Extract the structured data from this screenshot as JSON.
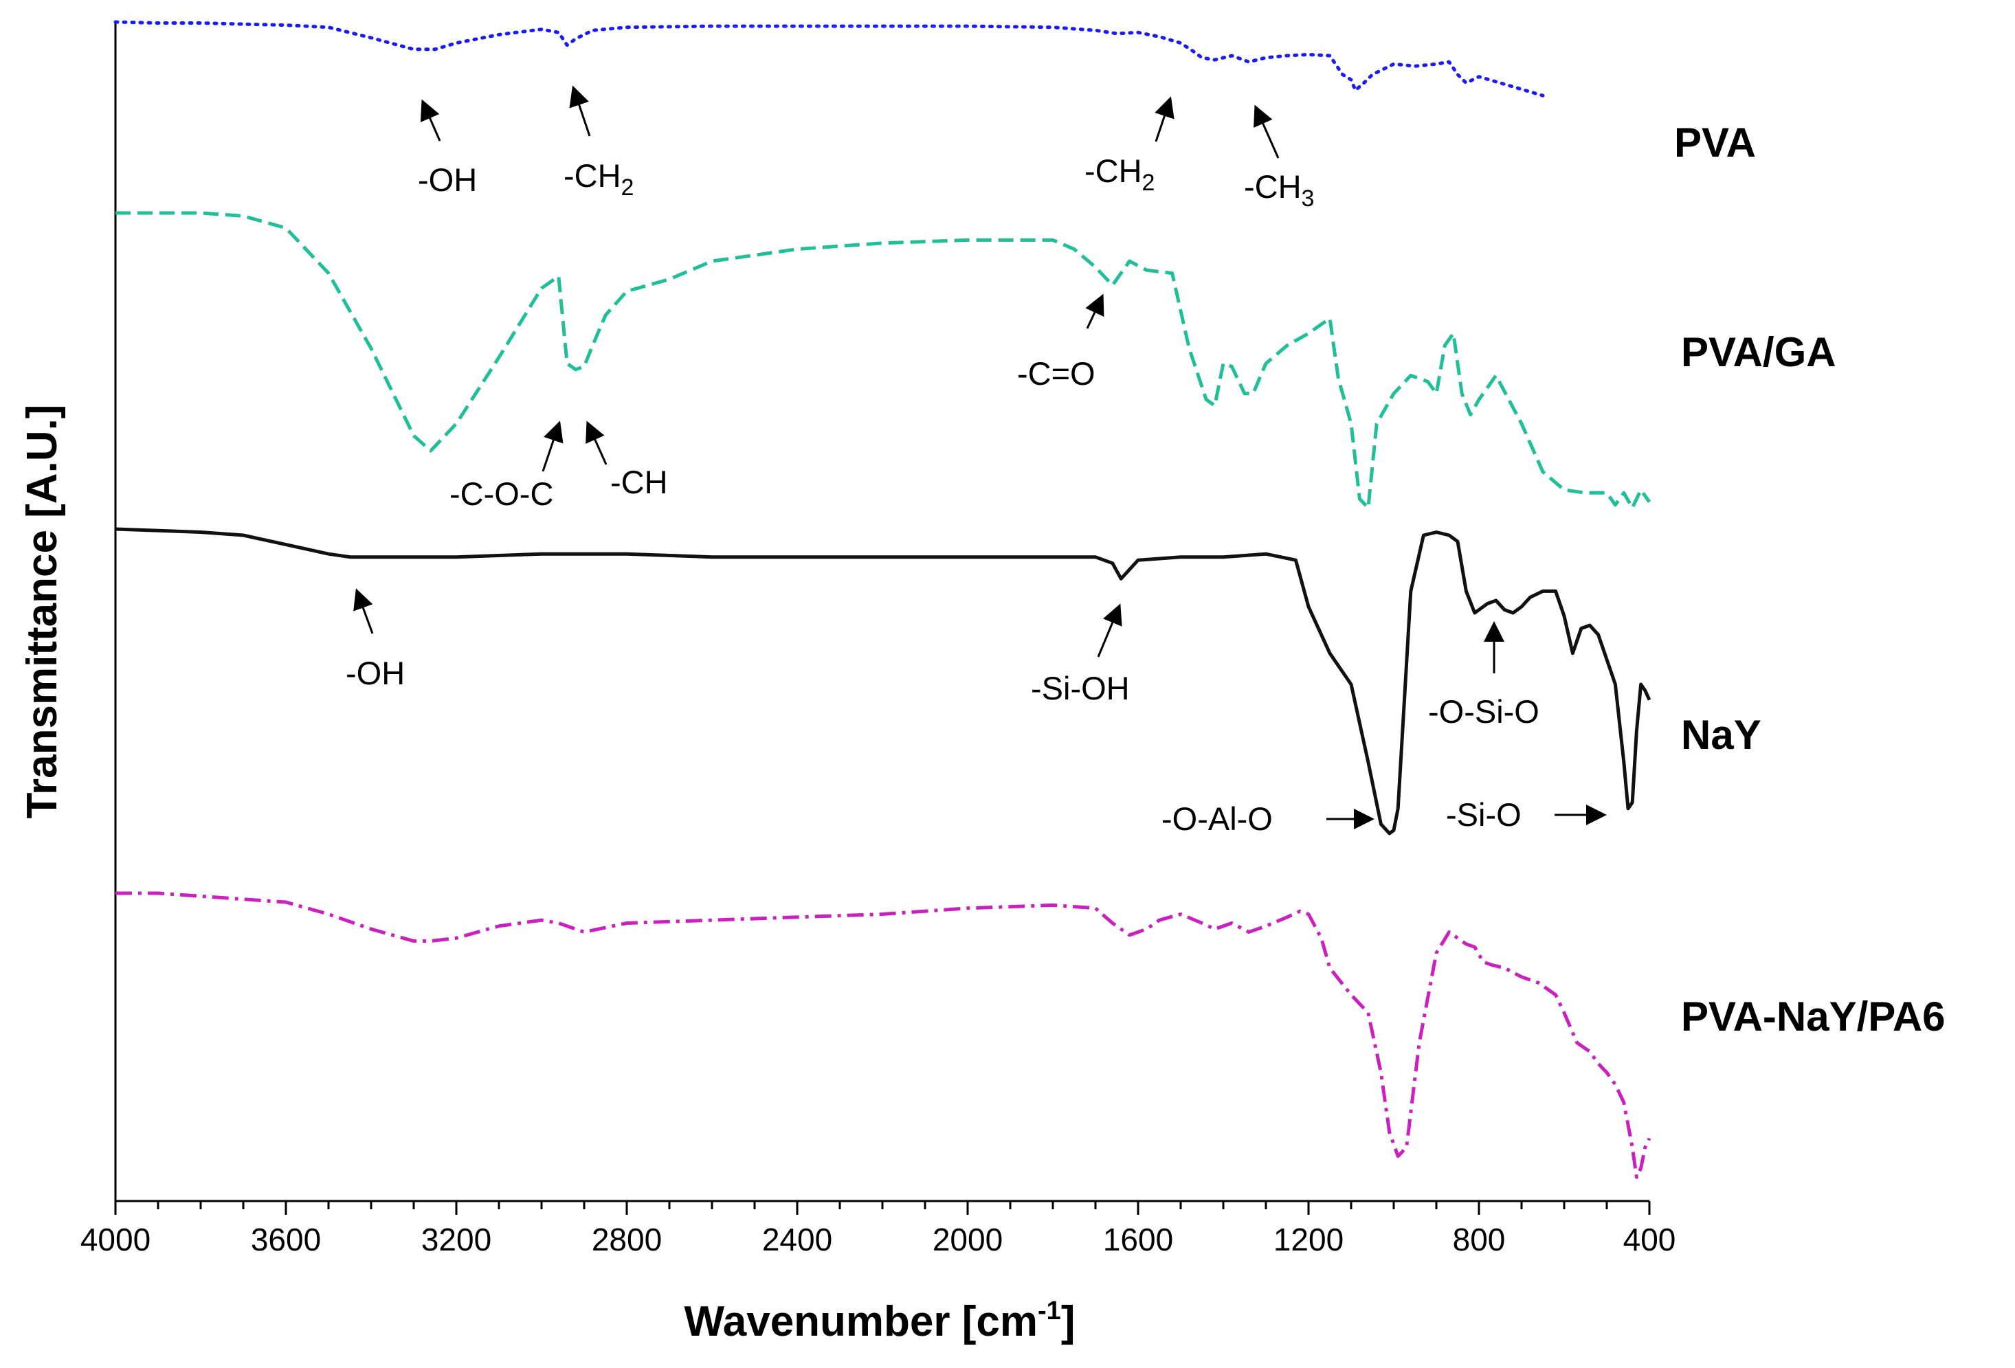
{
  "chart_data": {
    "type": "line",
    "title": "",
    "xlabel_main": "Wavenumber [cm",
    "xlabel_sup": "-1",
    "xlabel_tail": "]",
    "ylabel": "Transmittance [A.U.]",
    "xlim": [
      4000,
      400
    ],
    "x_ticks": [
      "4000",
      "3600",
      "3200",
      "2800",
      "2400",
      "2000",
      "1600",
      "1200",
      "800",
      "400"
    ],
    "y_units": "arbitrary (vertically offset, 0 = bottom of each trace band, 100 = top)",
    "grid": false,
    "series": [
      {
        "name": "PVA",
        "color": "#1a1aff",
        "style": "dotted",
        "x": [
          4000,
          3900,
          3800,
          3700,
          3600,
          3500,
          3400,
          3300,
          3250,
          3200,
          3100,
          3000,
          2960,
          2940,
          2920,
          2880,
          2800,
          2600,
          2400,
          2200,
          2000,
          1800,
          1700,
          1650,
          1600,
          1550,
          1500,
          1470,
          1450,
          1420,
          1380,
          1340,
          1300,
          1250,
          1200,
          1150,
          1120,
          1100,
          1090,
          1070,
          1050,
          1000,
          950,
          900,
          870,
          850,
          830,
          800,
          750,
          700,
          650
        ],
        "values": [
          100,
          99,
          99,
          98,
          97,
          95,
          85,
          74,
          74,
          80,
          88,
          93,
          90,
          78,
          84,
          92,
          95,
          96,
          96,
          96,
          96,
          95,
          92,
          89,
          90,
          86,
          80,
          72,
          66,
          64,
          68,
          62,
          66,
          68,
          69,
          68,
          50,
          45,
          35,
          42,
          50,
          60,
          58,
          60,
          62,
          50,
          42,
          48,
          42,
          36,
          30
        ]
      },
      {
        "name": "PVA/GA",
        "color": "#1fbf9a",
        "style": "dashed",
        "x": [
          4000,
          3800,
          3700,
          3600,
          3500,
          3400,
          3300,
          3260,
          3200,
          3100,
          3000,
          2960,
          2940,
          2920,
          2900,
          2880,
          2850,
          2800,
          2700,
          2600,
          2400,
          2200,
          2000,
          1800,
          1750,
          1700,
          1660,
          1620,
          1580,
          1520,
          1480,
          1440,
          1420,
          1400,
          1380,
          1350,
          1330,
          1300,
          1250,
          1200,
          1150,
          1130,
          1100,
          1080,
          1060,
          1040,
          1000,
          960,
          920,
          900,
          880,
          860,
          840,
          820,
          800,
          760,
          700,
          650,
          600,
          550,
          500,
          480,
          460,
          440,
          420,
          400
        ],
        "values": [
          100,
          100,
          99,
          95,
          80,
          55,
          26,
          21,
          30,
          52,
          75,
          79,
          50,
          48,
          49,
          56,
          66,
          74,
          78,
          84,
          88,
          90,
          91,
          91,
          88,
          82,
          76,
          84,
          81,
          80,
          55,
          38,
          36,
          50,
          49,
          40,
          40,
          50,
          56,
          60,
          65,
          45,
          30,
          5,
          2,
          30,
          40,
          46,
          44,
          40,
          56,
          60,
          40,
          33,
          38,
          46,
          30,
          14,
          8,
          7,
          7,
          3,
          7,
          2,
          8,
          4
        ]
      },
      {
        "name": "NaY",
        "color": "#111111",
        "style": "solid",
        "x": [
          4000,
          3800,
          3700,
          3600,
          3500,
          3450,
          3400,
          3300,
          3200,
          3000,
          2800,
          2600,
          2400,
          2200,
          2000,
          1800,
          1700,
          1660,
          1640,
          1620,
          1600,
          1500,
          1400,
          1300,
          1230,
          1200,
          1150,
          1100,
          1060,
          1030,
          1010,
          1000,
          990,
          960,
          930,
          900,
          870,
          850,
          830,
          810,
          780,
          760,
          740,
          720,
          700,
          680,
          650,
          620,
          600,
          580,
          560,
          540,
          520,
          500,
          480,
          460,
          450,
          440,
          430,
          420,
          410,
          400
        ],
        "values": [
          100,
          99,
          98,
          95,
          92,
          91,
          91,
          91,
          91,
          92,
          92,
          91,
          91,
          91,
          91,
          91,
          91,
          89,
          84,
          87,
          90,
          91,
          91,
          92,
          90,
          75,
          60,
          50,
          25,
          5,
          2,
          3,
          10,
          80,
          98,
          99,
          98,
          96,
          80,
          73,
          76,
          77,
          74,
          73,
          75,
          78,
          80,
          80,
          72,
          60,
          68,
          69,
          66,
          58,
          50,
          25,
          10,
          12,
          35,
          50,
          48,
          45
        ]
      },
      {
        "name": "PVA-NaY/PA6",
        "color": "#cc1fbf",
        "style": "dash-dot",
        "x": [
          4000,
          3900,
          3800,
          3700,
          3600,
          3500,
          3400,
          3300,
          3260,
          3200,
          3100,
          3000,
          2960,
          2900,
          2800,
          2600,
          2400,
          2200,
          2000,
          1800,
          1700,
          1660,
          1620,
          1580,
          1550,
          1500,
          1450,
          1420,
          1380,
          1340,
          1300,
          1250,
          1220,
          1200,
          1170,
          1150,
          1100,
          1060,
          1030,
          1010,
          990,
          970,
          940,
          900,
          870,
          850,
          830,
          810,
          790,
          770,
          740,
          700,
          660,
          640,
          620,
          600,
          570,
          540,
          520,
          500,
          480,
          460,
          440,
          430,
          420,
          410,
          400
        ],
        "values": [
          100,
          100,
          99,
          98,
          97,
          93,
          88,
          84,
          84,
          85,
          89,
          91,
          90,
          87,
          90,
          91,
          92,
          93,
          95,
          96,
          95,
          90,
          86,
          88,
          91,
          93,
          90,
          88,
          90,
          87,
          89,
          92,
          94,
          93,
          85,
          75,
          66,
          60,
          40,
          20,
          12,
          15,
          50,
          80,
          87,
          85,
          83,
          82,
          77,
          76,
          75,
          72,
          70,
          68,
          66,
          60,
          50,
          47,
          43,
          40,
          36,
          30,
          15,
          5,
          8,
          15,
          18
        ]
      }
    ],
    "annotations": [
      {
        "series": "PVA",
        "text": "-OH"
      },
      {
        "series": "PVA",
        "text": "-CH",
        "sub": "2"
      },
      {
        "series": "PVA",
        "text": "-CH",
        "sub": "2"
      },
      {
        "series": "PVA",
        "text": "-CH",
        "sub": "3"
      },
      {
        "series": "PVA/GA",
        "text": "-C=O"
      },
      {
        "series": "PVA/GA",
        "text": "-C-O-C"
      },
      {
        "series": "PVA/GA",
        "text": "-CH"
      },
      {
        "series": "NaY",
        "text": "-OH"
      },
      {
        "series": "NaY",
        "text": "-Si-OH"
      },
      {
        "series": "NaY",
        "text": "-O-Si-O"
      },
      {
        "series": "NaY",
        "text": "-O-Al-O"
      },
      {
        "series": "NaY",
        "text": "-Si-O"
      }
    ]
  }
}
